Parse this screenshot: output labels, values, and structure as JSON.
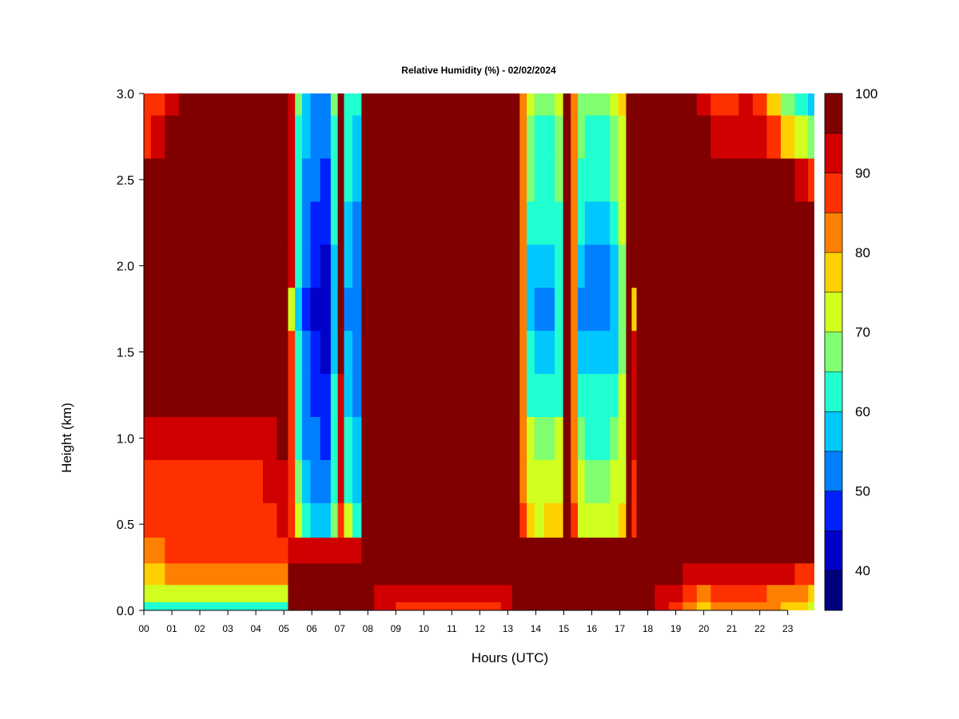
{
  "chart_data": {
    "type": "heatmap",
    "title": "Relative Humidity (%) - 02/02/2024",
    "xlabel": "Hours (UTC)",
    "ylabel": "Height (km)",
    "xlim": [
      0,
      23.95
    ],
    "ylim": [
      0,
      3.0
    ],
    "x_ticks": [
      "00",
      "01",
      "02",
      "03",
      "04",
      "05",
      "06",
      "07",
      "08",
      "09",
      "10",
      "11",
      "12",
      "13",
      "14",
      "15",
      "16",
      "17",
      "18",
      "19",
      "20",
      "21",
      "22",
      "23"
    ],
    "y_ticks": [
      "0.0",
      "0.5",
      "1.0",
      "1.5",
      "2.0",
      "2.5",
      "3.0"
    ],
    "colorbar": {
      "levels": [
        35,
        40,
        45,
        50,
        55,
        60,
        65,
        70,
        75,
        80,
        85,
        90,
        95,
        100
      ],
      "labels": [
        "40",
        "50",
        "60",
        "70",
        "80",
        "90",
        "100"
      ],
      "colors": [
        "#00007f",
        "#0000c8",
        "#0020ff",
        "#0080ff",
        "#00c8ff",
        "#20ffd0",
        "#80ff70",
        "#d0ff20",
        "#ffd000",
        "#ff8000",
        "#ff3000",
        "#d00000",
        "#800000"
      ]
    },
    "hours": [
      0.0,
      0.5,
      1.0,
      1.5,
      2.0,
      2.5,
      3.0,
      3.5,
      4.0,
      4.5,
      5.0,
      5.3,
      5.5,
      5.8,
      6.1,
      6.5,
      6.85,
      7.0,
      7.3,
      7.6,
      7.95,
      8.5,
      9.5,
      10.5,
      11.5,
      12.5,
      13.0,
      13.3,
      13.55,
      13.8,
      14.1,
      14.5,
      14.85,
      15.1,
      15.4,
      15.6,
      15.9,
      16.2,
      16.5,
      16.8,
      17.1,
      17.35,
      17.5,
      17.7,
      18.0,
      18.5,
      19.0,
      19.5,
      20.0,
      20.5,
      21.0,
      21.5,
      22.0,
      22.5,
      23.0,
      23.5,
      23.95
    ],
    "heights_km": [
      0.0,
      0.1,
      0.2,
      0.35,
      0.5,
      0.75,
      1.0,
      1.25,
      1.5,
      1.75,
      2.0,
      2.25,
      2.5,
      2.75,
      3.0
    ],
    "rh_values": [
      [
        62,
        62,
        62,
        62,
        62,
        62,
        62,
        62,
        62,
        62,
        60,
        98,
        98,
        98,
        98,
        98,
        98,
        98,
        98,
        98,
        98,
        90,
        88,
        88,
        88,
        88,
        90,
        98,
        98,
        98,
        98,
        98,
        98,
        98,
        98,
        98,
        98,
        98,
        98,
        98,
        98,
        98,
        98,
        98,
        96,
        90,
        86,
        80,
        78,
        80,
        80,
        80,
        80,
        80,
        78,
        75,
        74
      ],
      [
        70,
        70,
        72,
        72,
        72,
        72,
        72,
        72,
        72,
        74,
        74,
        98,
        98,
        98,
        98,
        98,
        98,
        98,
        98,
        98,
        98,
        94,
        92,
        92,
        92,
        92,
        94,
        98,
        98,
        98,
        98,
        98,
        98,
        98,
        98,
        98,
        98,
        98,
        98,
        98,
        98,
        98,
        98,
        98,
        98,
        94,
        90,
        86,
        84,
        86,
        86,
        86,
        86,
        84,
        82,
        80,
        78
      ],
      [
        78,
        78,
        80,
        80,
        80,
        80,
        80,
        82,
        82,
        84,
        84,
        98,
        98,
        98,
        98,
        98,
        98,
        98,
        98,
        98,
        98,
        97,
        96,
        96,
        96,
        96,
        97,
        98,
        98,
        98,
        98,
        98,
        98,
        98,
        98,
        98,
        98,
        98,
        98,
        98,
        98,
        98,
        98,
        98,
        98,
        97,
        95,
        92,
        90,
        92,
        92,
        92,
        92,
        90,
        90,
        88,
        87
      ],
      [
        84,
        84,
        86,
        86,
        86,
        86,
        86,
        86,
        86,
        88,
        88,
        92,
        91,
        90,
        90,
        90,
        92,
        94,
        92,
        90,
        96,
        98,
        98,
        98,
        98,
        98,
        98,
        98,
        98,
        98,
        98,
        98,
        98,
        98,
        98,
        98,
        98,
        98,
        98,
        98,
        98,
        98,
        98,
        98,
        98,
        98,
        98,
        98,
        98,
        98,
        98,
        98,
        98,
        98,
        98,
        98,
        98
      ],
      [
        86,
        86,
        86,
        86,
        86,
        86,
        86,
        88,
        88,
        88,
        90,
        86,
        72,
        62,
        58,
        56,
        68,
        88,
        70,
        62,
        95,
        98,
        98,
        98,
        98,
        98,
        98,
        98,
        85,
        76,
        74,
        75,
        76,
        98,
        85,
        74,
        72,
        72,
        72,
        74,
        78,
        98,
        88,
        98,
        98,
        98,
        98,
        98,
        98,
        98,
        98,
        98,
        98,
        98,
        98,
        98,
        98
      ],
      [
        88,
        88,
        88,
        88,
        88,
        88,
        88,
        88,
        88,
        90,
        92,
        86,
        66,
        56,
        52,
        50,
        64,
        90,
        64,
        58,
        96,
        98,
        98,
        98,
        98,
        98,
        98,
        98,
        82,
        72,
        70,
        70,
        72,
        98,
        82,
        70,
        68,
        68,
        68,
        70,
        74,
        98,
        88,
        98,
        98,
        98,
        98,
        98,
        98,
        98,
        98,
        98,
        98,
        98,
        98,
        98,
        98
      ],
      [
        94,
        94,
        94,
        92,
        92,
        92,
        92,
        92,
        92,
        94,
        96,
        88,
        62,
        54,
        50,
        48,
        62,
        92,
        60,
        56,
        98,
        98,
        98,
        98,
        98,
        98,
        98,
        98,
        80,
        70,
        68,
        66,
        70,
        98,
        80,
        66,
        64,
        64,
        64,
        66,
        72,
        98,
        90,
        98,
        98,
        98,
        98,
        98,
        98,
        98,
        98,
        98,
        98,
        98,
        98,
        98,
        98
      ],
      [
        98,
        98,
        98,
        98,
        98,
        98,
        98,
        98,
        98,
        98,
        98,
        88,
        60,
        52,
        48,
        46,
        60,
        94,
        58,
        54,
        98,
        98,
        98,
        98,
        98,
        98,
        98,
        98,
        80,
        64,
        60,
        60,
        64,
        98,
        80,
        62,
        60,
        60,
        60,
        62,
        70,
        98,
        92,
        98,
        98,
        98,
        98,
        98,
        98,
        98,
        98,
        98,
        98,
        98,
        98,
        98,
        98
      ],
      [
        98,
        98,
        98,
        98,
        98,
        98,
        98,
        98,
        98,
        98,
        98,
        88,
        60,
        50,
        46,
        44,
        58,
        96,
        56,
        52,
        98,
        98,
        98,
        98,
        98,
        98,
        98,
        98,
        80,
        60,
        56,
        56,
        62,
        98,
        80,
        58,
        56,
        56,
        56,
        58,
        68,
        98,
        90,
        98,
        98,
        98,
        98,
        98,
        98,
        98,
        98,
        98,
        98,
        98,
        98,
        98,
        98
      ],
      [
        98,
        98,
        98,
        98,
        98,
        98,
        98,
        98,
        98,
        98,
        98,
        70,
        58,
        48,
        44,
        42,
        56,
        96,
        54,
        50,
        98,
        98,
        98,
        98,
        98,
        98,
        98,
        98,
        80,
        56,
        52,
        52,
        60,
        98,
        80,
        54,
        52,
        52,
        52,
        56,
        66,
        98,
        78,
        98,
        98,
        98,
        98,
        98,
        98,
        98,
        98,
        98,
        98,
        98,
        98,
        98,
        98
      ],
      [
        98,
        98,
        98,
        98,
        98,
        98,
        98,
        98,
        98,
        98,
        98,
        90,
        60,
        50,
        46,
        44,
        58,
        96,
        56,
        52,
        98,
        98,
        98,
        98,
        98,
        98,
        98,
        98,
        80,
        58,
        56,
        56,
        62,
        98,
        80,
        56,
        54,
        54,
        54,
        58,
        68,
        98,
        96,
        98,
        98,
        98,
        98,
        98,
        98,
        98,
        98,
        98,
        98,
        98,
        98,
        98,
        98
      ],
      [
        98,
        98,
        98,
        98,
        98,
        98,
        98,
        98,
        98,
        98,
        98,
        90,
        60,
        52,
        48,
        46,
        60,
        96,
        58,
        54,
        98,
        98,
        98,
        98,
        98,
        98,
        98,
        98,
        80,
        62,
        60,
        60,
        64,
        98,
        80,
        60,
        58,
        58,
        58,
        62,
        70,
        98,
        95,
        98,
        98,
        98,
        98,
        98,
        98,
        98,
        98,
        98,
        98,
        98,
        98,
        98,
        98
      ],
      [
        98,
        98,
        98,
        98,
        98,
        98,
        98,
        98,
        98,
        98,
        98,
        90,
        62,
        54,
        50,
        48,
        62,
        96,
        60,
        56,
        98,
        98,
        98,
        98,
        98,
        98,
        98,
        98,
        82,
        66,
        62,
        62,
        66,
        98,
        82,
        64,
        62,
        62,
        62,
        66,
        72,
        98,
        98,
        98,
        98,
        98,
        98,
        98,
        98,
        98,
        98,
        98,
        98,
        98,
        98,
        90,
        88
      ],
      [
        88,
        92,
        96,
        98,
        98,
        98,
        98,
        98,
        98,
        98,
        98,
        90,
        64,
        56,
        52,
        50,
        64,
        96,
        62,
        58,
        98,
        98,
        98,
        98,
        98,
        98,
        98,
        98,
        82,
        68,
        64,
        64,
        68,
        98,
        82,
        66,
        64,
        64,
        64,
        68,
        74,
        98,
        98,
        98,
        98,
        98,
        98,
        98,
        98,
        92,
        90,
        92,
        92,
        86,
        76,
        70,
        66
      ],
      [
        85,
        88,
        92,
        98,
        98,
        98,
        98,
        98,
        98,
        98,
        98,
        90,
        66,
        58,
        54,
        52,
        66,
        96,
        64,
        60,
        98,
        98,
        98,
        98,
        98,
        98,
        98,
        98,
        84,
        70,
        66,
        66,
        70,
        98,
        84,
        68,
        66,
        66,
        66,
        70,
        76,
        98,
        98,
        98,
        98,
        98,
        98,
        98,
        90,
        88,
        86,
        90,
        88,
        76,
        66,
        60,
        58
      ]
    ]
  }
}
